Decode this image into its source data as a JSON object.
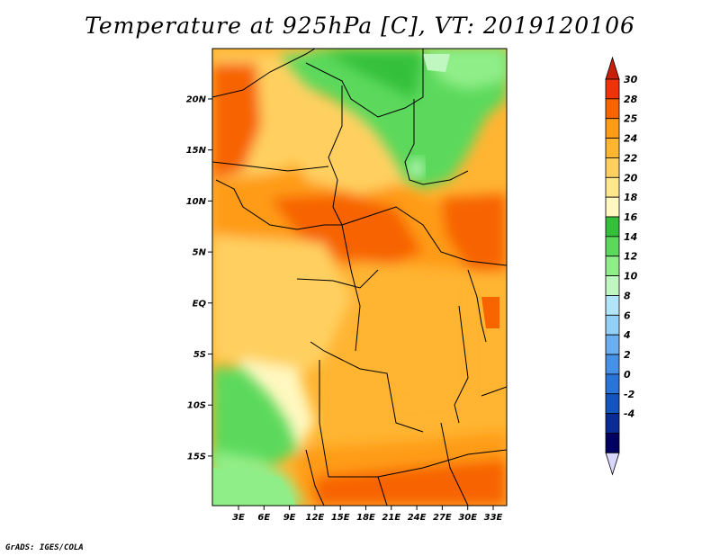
{
  "title": "Temperature at 925hPa [C], VT: 2019120106",
  "footer": "GrADS: IGES/COLA",
  "map": {
    "lat_labels": [
      "20N",
      "15N",
      "10N",
      "5N",
      "EQ",
      "5S",
      "10S",
      "15S"
    ],
    "lon_labels": [
      "3E",
      "6E",
      "9E",
      "12E",
      "15E",
      "18E",
      "21E",
      "24E",
      "27E",
      "30E",
      "33E"
    ]
  },
  "colorbar": {
    "labels": [
      "30",
      "28",
      "25",
      "24",
      "22",
      "20",
      "18",
      "16",
      "14",
      "12",
      "10",
      "8",
      "6",
      "4",
      "2",
      "0",
      "-2",
      "-4"
    ],
    "colors": [
      "#f0320a",
      "#f76400",
      "#ff9b16",
      "#ffb432",
      "#ffd060",
      "#ffe88c",
      "#fff8c0",
      "#34c03a",
      "#5cd95c",
      "#90ee88",
      "#c0f7c0",
      "#b2e4fa",
      "#93d0f8",
      "#6aaef0",
      "#4691e6",
      "#2a73d8",
      "#1454bf",
      "#0a2a96",
      "#000060"
    ],
    "top_arrow_color": "#c81e0a",
    "bottom_arrow_color": "#d7d7ff"
  }
}
